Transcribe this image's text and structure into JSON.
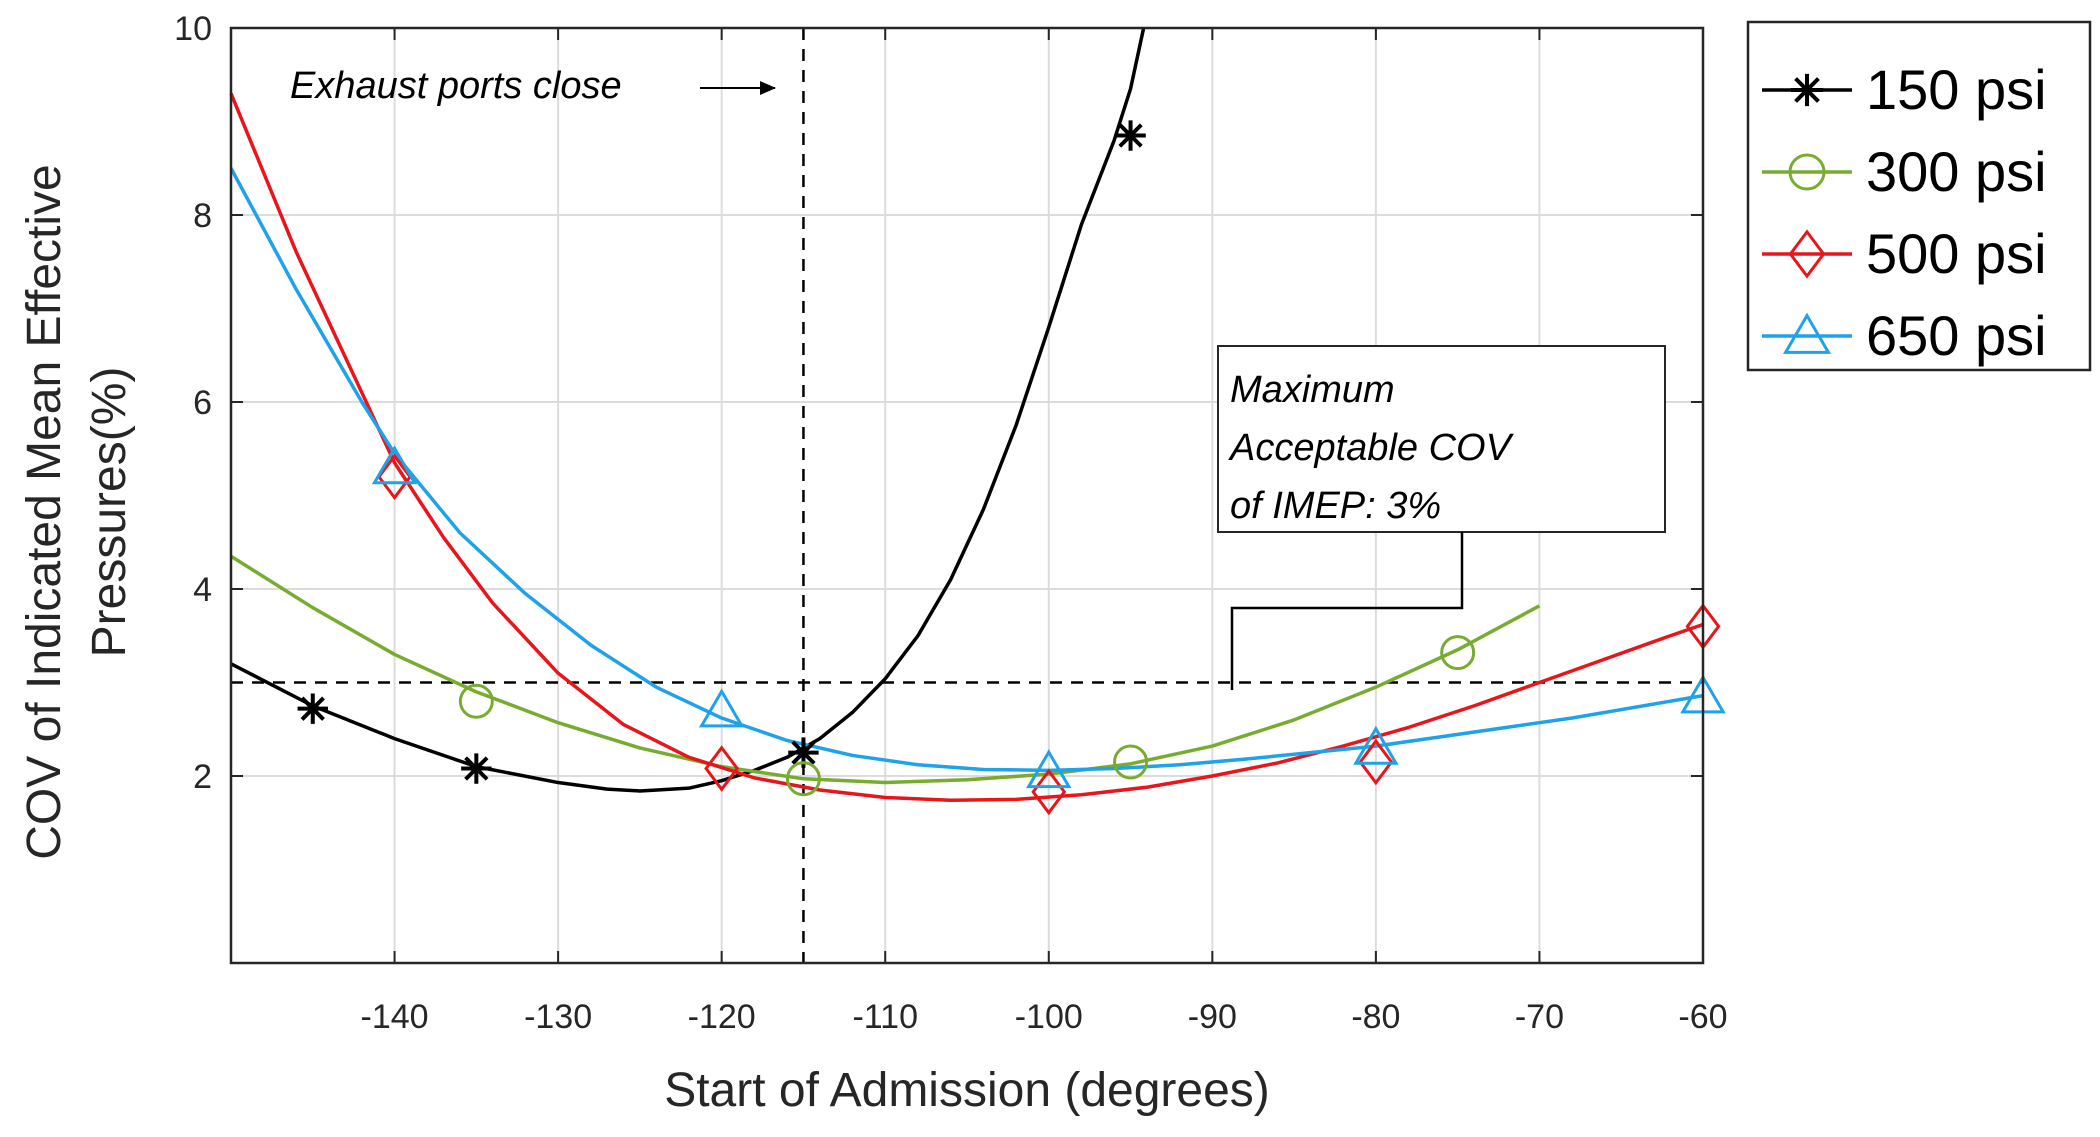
{
  "chart_data": {
    "type": "line",
    "title": "",
    "xlabel": "Start of Admission (degrees)",
    "ylabel_lines": [
      "COV of Indicated Mean Effective",
      "Pressures(%)"
    ],
    "xlim": [
      -150,
      -60
    ],
    "ylim": [
      0,
      10
    ],
    "xticks": [
      -140,
      -130,
      -120,
      -110,
      -100,
      -90,
      -80,
      -70,
      -60
    ],
    "yticks": [
      2,
      4,
      6,
      8,
      10
    ],
    "grid": true,
    "legend_position": "outside top-right",
    "series": [
      {
        "name": "150 psi",
        "color": "#000000",
        "marker": "star",
        "x": [
          -145,
          -135,
          -115,
          -95
        ],
        "y": [
          2.72,
          2.08,
          2.25,
          8.85
        ],
        "fit_x": [
          -150,
          -145,
          -140,
          -135,
          -130,
          -127,
          -125,
          -122,
          -120,
          -118,
          -116,
          -114,
          -112,
          -110,
          -108,
          -106,
          -104,
          -102,
          -100,
          -98,
          -96,
          -95,
          -94.2
        ],
        "fit_y": [
          3.2,
          2.75,
          2.4,
          2.1,
          1.93,
          1.86,
          1.84,
          1.87,
          1.95,
          2.06,
          2.2,
          2.4,
          2.68,
          3.04,
          3.5,
          4.1,
          4.85,
          5.75,
          6.8,
          7.9,
          8.8,
          9.35,
          10.0
        ]
      },
      {
        "name": "300 psi",
        "color": "#77ac30",
        "marker": "circle",
        "x": [
          -135,
          -115,
          -95,
          -75
        ],
        "y": [
          2.8,
          1.97,
          2.15,
          3.32
        ],
        "fit_x": [
          -150,
          -145,
          -140,
          -135,
          -130,
          -125,
          -120,
          -115,
          -110,
          -105,
          -100,
          -95,
          -90,
          -85,
          -80,
          -75,
          -70
        ],
        "fit_y": [
          4.35,
          3.8,
          3.3,
          2.9,
          2.57,
          2.3,
          2.1,
          1.97,
          1.93,
          1.96,
          2.02,
          2.13,
          2.32,
          2.6,
          2.95,
          3.35,
          3.82
        ]
      },
      {
        "name": "500 psi",
        "color": "#e8161b",
        "marker": "diamond",
        "x": [
          -140,
          -120,
          -100,
          -80,
          -60
        ],
        "y": [
          5.2,
          2.08,
          1.83,
          2.15,
          3.6
        ],
        "fit_x": [
          -150,
          -146,
          -142,
          -140,
          -137,
          -134,
          -130,
          -126,
          -122,
          -118,
          -114,
          -110,
          -106,
          -102,
          -98,
          -94,
          -90,
          -86,
          -82,
          -78,
          -74,
          -70,
          -66,
          -62,
          -60
        ],
        "fit_y": [
          9.3,
          7.6,
          6.1,
          5.35,
          4.55,
          3.85,
          3.1,
          2.55,
          2.2,
          1.98,
          1.85,
          1.77,
          1.74,
          1.75,
          1.8,
          1.88,
          2.0,
          2.14,
          2.32,
          2.52,
          2.75,
          3.0,
          3.25,
          3.5,
          3.62
        ]
      },
      {
        "name": "650 psi",
        "color": "#1fa2e8",
        "marker": "triangle",
        "x": [
          -140,
          -120,
          -100,
          -80,
          -60
        ],
        "y": [
          5.3,
          2.7,
          2.05,
          2.3,
          2.85
        ],
        "fit_x": [
          -150,
          -146,
          -142,
          -140,
          -136,
          -132,
          -128,
          -124,
          -120,
          -116,
          -112,
          -108,
          -104,
          -100,
          -96,
          -92,
          -88,
          -84,
          -80,
          -76,
          -72,
          -68,
          -64,
          -60
        ],
        "fit_y": [
          8.5,
          7.2,
          6.0,
          5.45,
          4.6,
          3.95,
          3.4,
          2.95,
          2.62,
          2.38,
          2.22,
          2.12,
          2.07,
          2.06,
          2.08,
          2.12,
          2.18,
          2.25,
          2.32,
          2.42,
          2.52,
          2.62,
          2.74,
          2.86
        ]
      }
    ],
    "reference_lines": [
      {
        "orientation": "vertical",
        "x": -115
      },
      {
        "orientation": "horizontal",
        "y": 3
      }
    ],
    "annotations": {
      "exhaust": {
        "text": "Exhaust ports close",
        "x": -115,
        "y": 9.3
      },
      "max_cov": {
        "lines": [
          "Maximum",
          "Acceptable COV",
          "of IMEP: 3%"
        ],
        "x": -89,
        "y": 3
      }
    }
  }
}
